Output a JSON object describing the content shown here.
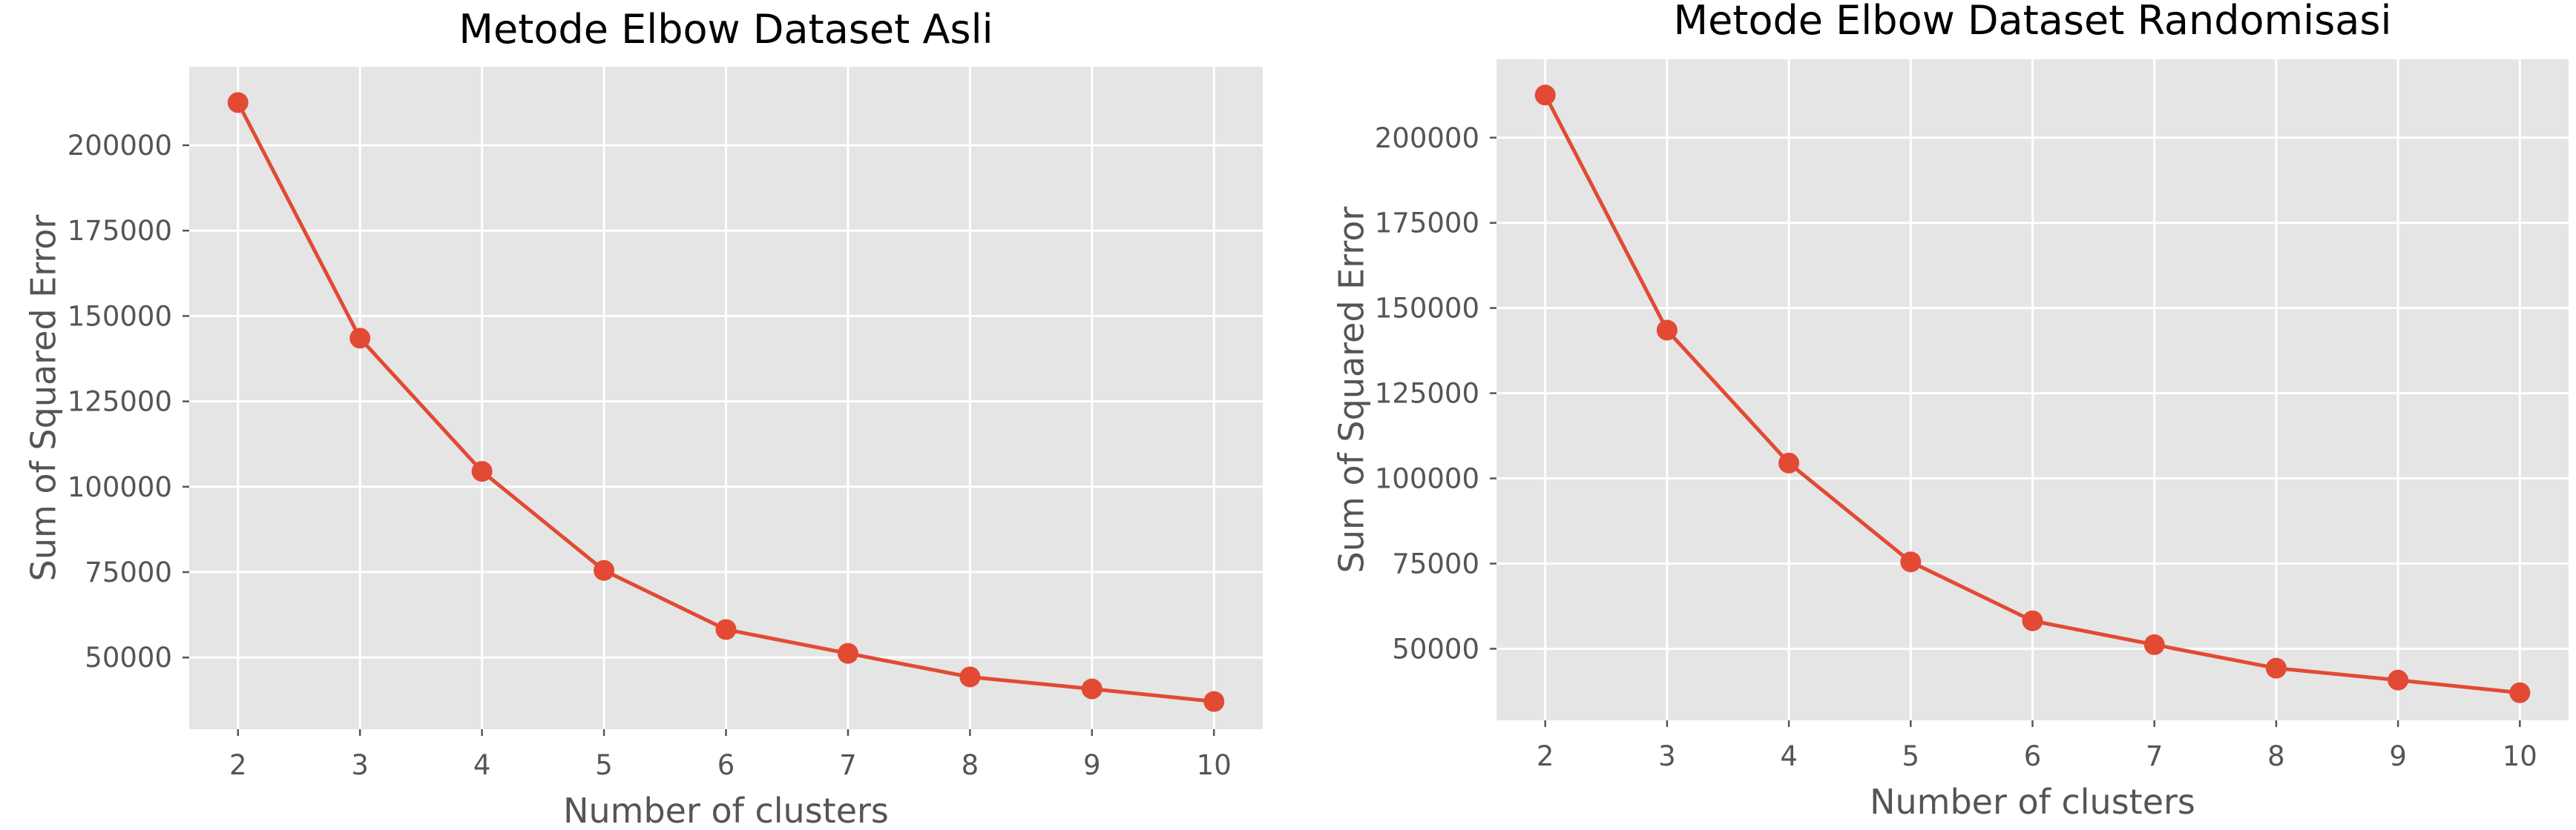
{
  "colors": {
    "series": "#e24a33",
    "plot_background": "#e5e5e5",
    "grid": "#ffffff",
    "tick_text": "#555555"
  },
  "chart_data": [
    {
      "type": "line",
      "title": "Metode Elbow Dataset Asli",
      "xlabel": "Number of clusters",
      "ylabel": "Sum of Squared Error",
      "x": [
        2,
        3,
        4,
        5,
        6,
        7,
        8,
        9,
        10
      ],
      "series": [
        {
          "values": [
            212500,
            143500,
            104500,
            75500,
            58200,
            51200,
            44300,
            40800,
            37100
          ]
        }
      ],
      "xlim": [
        1.6,
        10.4
      ],
      "ylim": [
        29000,
        223000
      ],
      "xticks": [
        2,
        3,
        4,
        5,
        6,
        7,
        8,
        9,
        10
      ],
      "xtick_labels": [
        "2",
        "3",
        "4",
        "5",
        "6",
        "7",
        "8",
        "9",
        "10"
      ],
      "yticks": [
        50000,
        75000,
        100000,
        125000,
        150000,
        175000,
        200000
      ],
      "ytick_labels": [
        "50000",
        "75000",
        "100000",
        "125000",
        "150000",
        "175000",
        "200000"
      ],
      "grid": true,
      "marker": "circle"
    },
    {
      "type": "line",
      "title": "Metode Elbow Dataset Randomisasi",
      "xlabel": "Number of clusters",
      "ylabel": "Sum of Squared Error",
      "x": [
        2,
        3,
        4,
        5,
        6,
        7,
        8,
        9,
        10
      ],
      "series": [
        {
          "values": [
            212500,
            143500,
            104500,
            75500,
            58200,
            51200,
            44300,
            40800,
            37100
          ]
        }
      ],
      "xlim": [
        1.6,
        10.4
      ],
      "ylim": [
        29000,
        223000
      ],
      "xticks": [
        2,
        3,
        4,
        5,
        6,
        7,
        8,
        9,
        10
      ],
      "xtick_labels": [
        "2",
        "3",
        "4",
        "5",
        "6",
        "7",
        "8",
        "9",
        "10"
      ],
      "yticks": [
        50000,
        75000,
        100000,
        125000,
        150000,
        175000,
        200000
      ],
      "ytick_labels": [
        "50000",
        "75000",
        "100000",
        "125000",
        "150000",
        "175000",
        "200000"
      ],
      "grid": true,
      "marker": "circle"
    }
  ]
}
